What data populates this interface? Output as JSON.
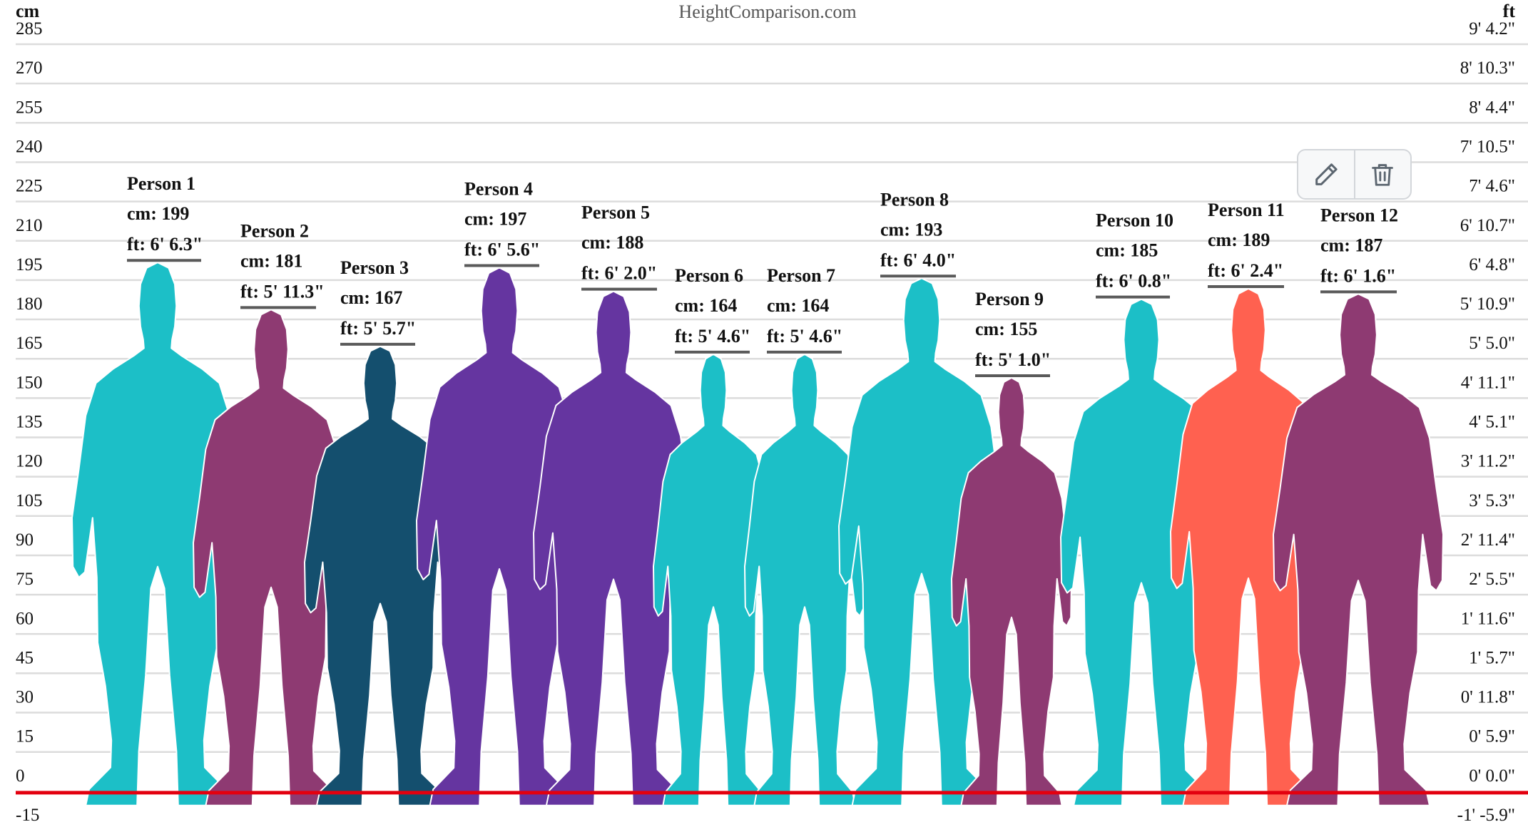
{
  "header": {
    "site": "HeightComparison.com",
    "left_unit": "cm",
    "right_unit": "ft"
  },
  "toolbar": {
    "edit_icon": "pencil-icon",
    "delete_icon": "trash-icon"
  },
  "colors": {
    "baseline": "#e3000f",
    "gridline": "#dcdcdc",
    "teal": "#1cbfc7",
    "plum": "#8e3a72",
    "navy": "#144f6e",
    "violet": "#6535a0",
    "coral": "#ff6150"
  },
  "chart_data": {
    "type": "bar",
    "title": "",
    "ylim": [
      -15,
      285
    ],
    "grid": true,
    "y_ticks_cm": [
      "285",
      "270",
      "255",
      "240",
      "225",
      "210",
      "195",
      "180",
      "165",
      "150",
      "135",
      "120",
      "105",
      "90",
      "75",
      "60",
      "45",
      "30",
      "15",
      "0",
      "-15"
    ],
    "y_ticks_ft": [
      "9' 4.2\"",
      "8' 10.3\"",
      "8' 4.4\"",
      "7' 10.5\"",
      "7' 4.6\"",
      "6' 10.7\"",
      "6' 4.8\"",
      "5' 10.9\"",
      "5' 5.0\"",
      "4' 11.1\"",
      "4' 5.1\"",
      "3' 11.2\"",
      "3' 5.3\"",
      "2' 11.4\"",
      "2' 5.5\"",
      "1' 11.6\"",
      "1' 5.7\"",
      "0' 11.8\"",
      "0' 5.9\"",
      "0' 0.0\"",
      "-1' -5.9\""
    ],
    "people": [
      {
        "name": "Person 1",
        "cm": 199,
        "cm_label": "cm: 199",
        "ft_label": "ft: 6' 6.3\"",
        "color": "#1cbfc7"
      },
      {
        "name": "Person 2",
        "cm": 181,
        "cm_label": "cm: 181",
        "ft_label": "ft: 5' 11.3\"",
        "color": "#8e3a72"
      },
      {
        "name": "Person 3",
        "cm": 167,
        "cm_label": "cm: 167",
        "ft_label": "ft: 5' 5.7\"",
        "color": "#144f6e"
      },
      {
        "name": "Person 4",
        "cm": 197,
        "cm_label": "cm: 197",
        "ft_label": "ft: 6' 5.6\"",
        "color": "#6535a0"
      },
      {
        "name": "Person 5",
        "cm": 188,
        "cm_label": "cm: 188",
        "ft_label": "ft: 6' 2.0\"",
        "color": "#6535a0"
      },
      {
        "name": "Person 6",
        "cm": 164,
        "cm_label": "cm: 164",
        "ft_label": "ft: 5' 4.6\"",
        "color": "#1cbfc7"
      },
      {
        "name": "Person 7",
        "cm": 164,
        "cm_label": "cm: 164",
        "ft_label": "ft: 5' 4.6\"",
        "color": "#1cbfc7"
      },
      {
        "name": "Person 8",
        "cm": 193,
        "cm_label": "cm: 193",
        "ft_label": "ft: 6' 4.0\"",
        "color": "#1cbfc7"
      },
      {
        "name": "Person 9",
        "cm": 155,
        "cm_label": "cm: 155",
        "ft_label": "ft: 5' 1.0\"",
        "color": "#8e3a72"
      },
      {
        "name": "Person 10",
        "cm": 185,
        "cm_label": "cm: 185",
        "ft_label": "ft: 6' 0.8\"",
        "color": "#1cbfc7"
      },
      {
        "name": "Person 11",
        "cm": 189,
        "cm_label": "cm: 189",
        "ft_label": "ft: 6' 2.4\"",
        "color": "#ff6150"
      },
      {
        "name": "Person 12",
        "cm": 187,
        "cm_label": "cm: 187",
        "ft_label": "ft: 6' 1.6\"",
        "color": "#8e3a72"
      }
    ]
  }
}
